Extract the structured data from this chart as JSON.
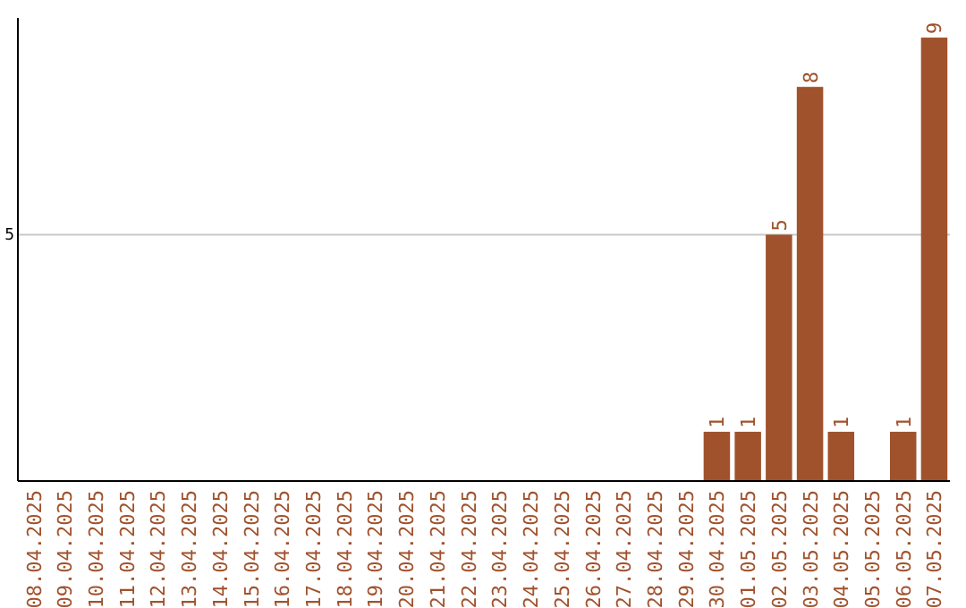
{
  "chart_data": {
    "type": "bar",
    "categories": [
      "08.04.2025",
      "09.04.2025",
      "10.04.2025",
      "11.04.2025",
      "12.04.2025",
      "13.04.2025",
      "14.04.2025",
      "15.04.2025",
      "16.04.2025",
      "17.04.2025",
      "18.04.2025",
      "19.04.2025",
      "20.04.2025",
      "21.04.2025",
      "22.04.2025",
      "23.04.2025",
      "24.04.2025",
      "25.04.2025",
      "26.04.2025",
      "27.04.2025",
      "28.04.2025",
      "29.04.2025",
      "30.04.2025",
      "01.05.2025",
      "02.05.2025",
      "03.05.2025",
      "04.05.2025",
      "05.05.2025",
      "06.05.2025",
      "07.05.2025"
    ],
    "values": [
      null,
      null,
      null,
      null,
      null,
      null,
      null,
      null,
      null,
      null,
      null,
      null,
      null,
      null,
      null,
      null,
      null,
      null,
      null,
      null,
      null,
      null,
      1,
      1,
      5,
      8,
      1,
      null,
      1,
      9
    ],
    "data_labels": true,
    "color": "#a0522d",
    "ylim": [
      0,
      9.4
    ],
    "ref_lines": [
      {
        "axis": "y",
        "value": 5,
        "label": "5",
        "color": "#c8c8c8"
      }
    ]
  }
}
